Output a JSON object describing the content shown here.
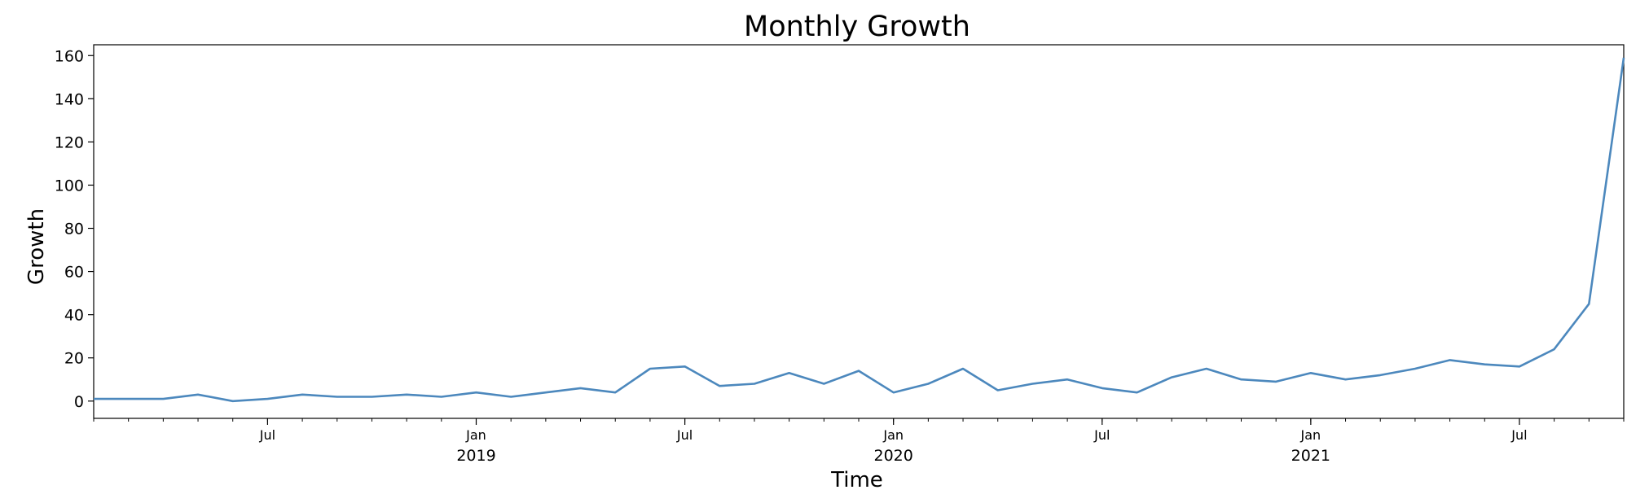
{
  "chart_data": {
    "type": "line",
    "title": "Monthly Growth",
    "xlabel": "Time",
    "ylabel": "Growth",
    "ylim": [
      -8,
      165
    ],
    "yticks": [
      0,
      20,
      40,
      60,
      80,
      100,
      120,
      140,
      160
    ],
    "line_color": "#4c88bd",
    "grid": false,
    "x_ticks_major": [
      {
        "date": "2018-07",
        "label": "Jul",
        "year": ""
      },
      {
        "date": "2019-01",
        "label": "Jan",
        "year": "2019"
      },
      {
        "date": "2019-07",
        "label": "Jul",
        "year": ""
      },
      {
        "date": "2020-01",
        "label": "Jan",
        "year": "2020"
      },
      {
        "date": "2020-07",
        "label": "Jul",
        "year": ""
      },
      {
        "date": "2021-01",
        "label": "Jan",
        "year": "2021"
      },
      {
        "date": "2021-07",
        "label": "Jul",
        "year": ""
      }
    ],
    "series": [
      {
        "x": [
          "2018-02",
          "2018-03",
          "2018-04",
          "2018-05",
          "2018-06",
          "2018-07",
          "2018-08",
          "2018-09",
          "2018-10",
          "2018-11",
          "2018-12",
          "2019-01",
          "2019-02",
          "2019-03",
          "2019-04",
          "2019-05",
          "2019-06",
          "2019-07",
          "2019-08",
          "2019-09",
          "2019-10",
          "2019-11",
          "2019-12",
          "2020-01",
          "2020-02",
          "2020-03",
          "2020-04",
          "2020-05",
          "2020-06",
          "2020-07",
          "2020-08",
          "2020-09",
          "2020-10",
          "2020-11",
          "2020-12",
          "2021-01",
          "2021-02",
          "2021-03",
          "2021-04",
          "2021-05",
          "2021-06",
          "2021-07",
          "2021-08",
          "2021-09",
          "2021-10"
        ],
        "values": [
          1,
          1,
          1,
          3,
          0,
          1,
          3,
          2,
          2,
          3,
          2,
          4,
          2,
          4,
          6,
          4,
          15,
          16,
          7,
          8,
          13,
          8,
          14,
          4,
          8,
          15,
          5,
          8,
          10,
          6,
          4,
          11,
          15,
          10,
          9,
          13,
          10,
          12,
          15,
          19,
          17,
          16,
          24,
          45,
          159
        ]
      }
    ]
  }
}
